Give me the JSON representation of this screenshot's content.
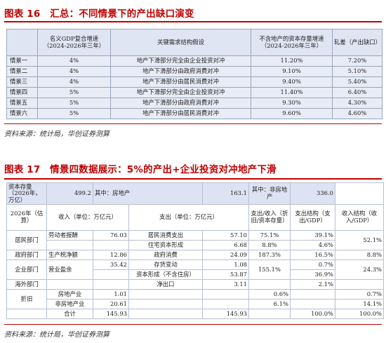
{
  "fig16": {
    "title": "图表 16　汇总：不同情景下的产出缺口演变",
    "headers": [
      "",
      "名义GDP复合增速（2024-2026年三年）",
      "关键需求结构假设",
      "不含地产的资本存量增速（2024-2026年三年）",
      "轧差（产出缺口）"
    ],
    "rows": [
      {
        "scenario": "情景一",
        "gdp": "4%",
        "assumption": "地产下滑部分完全由企业投资对冲",
        "stock": "11.20%",
        "gap": "7.20%",
        "highlight": false
      },
      {
        "scenario": "情景二",
        "gdp": "4%",
        "assumption": "地产下滑部分由政府消费对冲",
        "stock": "9.10%",
        "gap": "5.10%",
        "highlight": false
      },
      {
        "scenario": "情景三",
        "gdp": "4%",
        "assumption": "地产下滑部分由居民消费对冲",
        "stock": "9.40%",
        "gap": "5.40%",
        "highlight": false
      },
      {
        "scenario": "情景四",
        "gdp": "5%",
        "assumption": "地产下滑部分完全由企业投资对冲",
        "stock": "11.40%",
        "gap": "6.40%",
        "highlight": false
      },
      {
        "scenario": "情景五",
        "gdp": "5%",
        "assumption": "地产下滑部分由政府消费对冲",
        "stock": "9.30%",
        "gap": "4.30%",
        "highlight": true
      },
      {
        "scenario": "情景六",
        "gdp": "5%",
        "assumption": "地产下滑部分由居民消费对冲",
        "stock": "9.60%",
        "gap": "4.60%",
        "highlight": true
      }
    ],
    "source": "资料来源：统计局，华创证券测算"
  },
  "fig17": {
    "title": "图表 17　情景四数据展示：5%的产出+企业投资对冲地产下滑",
    "stock_row": {
      "label": "资本存量（2026年，万亿）",
      "value": "499.2",
      "mid_label": "其中：房地产",
      "mid_value": "163.1",
      "right_label": "其中：非房地产",
      "right_value": "336.0"
    },
    "col_headers": {
      "year": "2026年（估算）",
      "income": "收入（单位：万亿元）",
      "expense": "支出（单位：万亿元）",
      "expense_ratio": "支出/收入（折旧/资本存量）",
      "expense_struct": "支出结构（支出/GDP）",
      "income_struct": "收入结构（收入/GDP）"
    },
    "rows": [
      {
        "sector": "居民部门",
        "inc_item": "劳动者报酬",
        "inc_val": "76.03",
        "exp_item": "居民消费支出",
        "exp_val": "57.10",
        "ratio": "75.1%",
        "exp_struct": "39.1%",
        "inc_struct": "52.1%"
      },
      {
        "sector": "",
        "inc_item": "",
        "inc_val": "",
        "exp_item": "住宅资本形成",
        "exp_val": "6.68",
        "ratio": "8.8%",
        "exp_struct": "4.6%",
        "inc_struct": ""
      },
      {
        "sector": "政府部门",
        "inc_item": "生产税净额",
        "inc_val": "12.86",
        "exp_item": "政府消费",
        "exp_val": "24.09",
        "ratio": "187.3%",
        "exp_struct": "16.5%",
        "inc_struct": "8.8%"
      },
      {
        "sector": "企业部门",
        "inc_item": "营业盈余",
        "inc_val": "35.42",
        "exp_item": "存货变动",
        "exp_val": "1.08",
        "ratio": "155.1%",
        "exp_struct": "0.7%",
        "inc_struct": "24.3%"
      },
      {
        "sector": "",
        "inc_item": "",
        "inc_val": "",
        "exp_item": "资本形成（不含住房）",
        "exp_val": "53.87",
        "ratio": "",
        "exp_struct": "36.9%",
        "inc_struct": ""
      },
      {
        "sector": "海外部门",
        "inc_item": "",
        "inc_val": "",
        "exp_item": "净出口",
        "exp_val": "3.11",
        "ratio": "",
        "exp_struct": "2.1%",
        "inc_struct": ""
      },
      {
        "sector": "折旧",
        "inc_item": "房地产业",
        "inc_val": "1.01",
        "exp_item": "",
        "exp_val": "",
        "ratio": "0.6%",
        "exp_struct": "",
        "inc_struct": "0.7%"
      },
      {
        "sector": "",
        "inc_item": "非房地产业",
        "inc_val": "20.61",
        "exp_item": "",
        "exp_val": "",
        "ratio": "6.1%",
        "exp_struct": "",
        "inc_struct": "14.1%"
      },
      {
        "sector": "",
        "inc_item": "合计",
        "inc_val": "145.93",
        "exp_item": "",
        "exp_val": "145.93",
        "ratio": "",
        "exp_struct": "100.0%",
        "inc_struct": "100.0%"
      }
    ],
    "source": "资料来源：统计局，华创证券测算"
  }
}
